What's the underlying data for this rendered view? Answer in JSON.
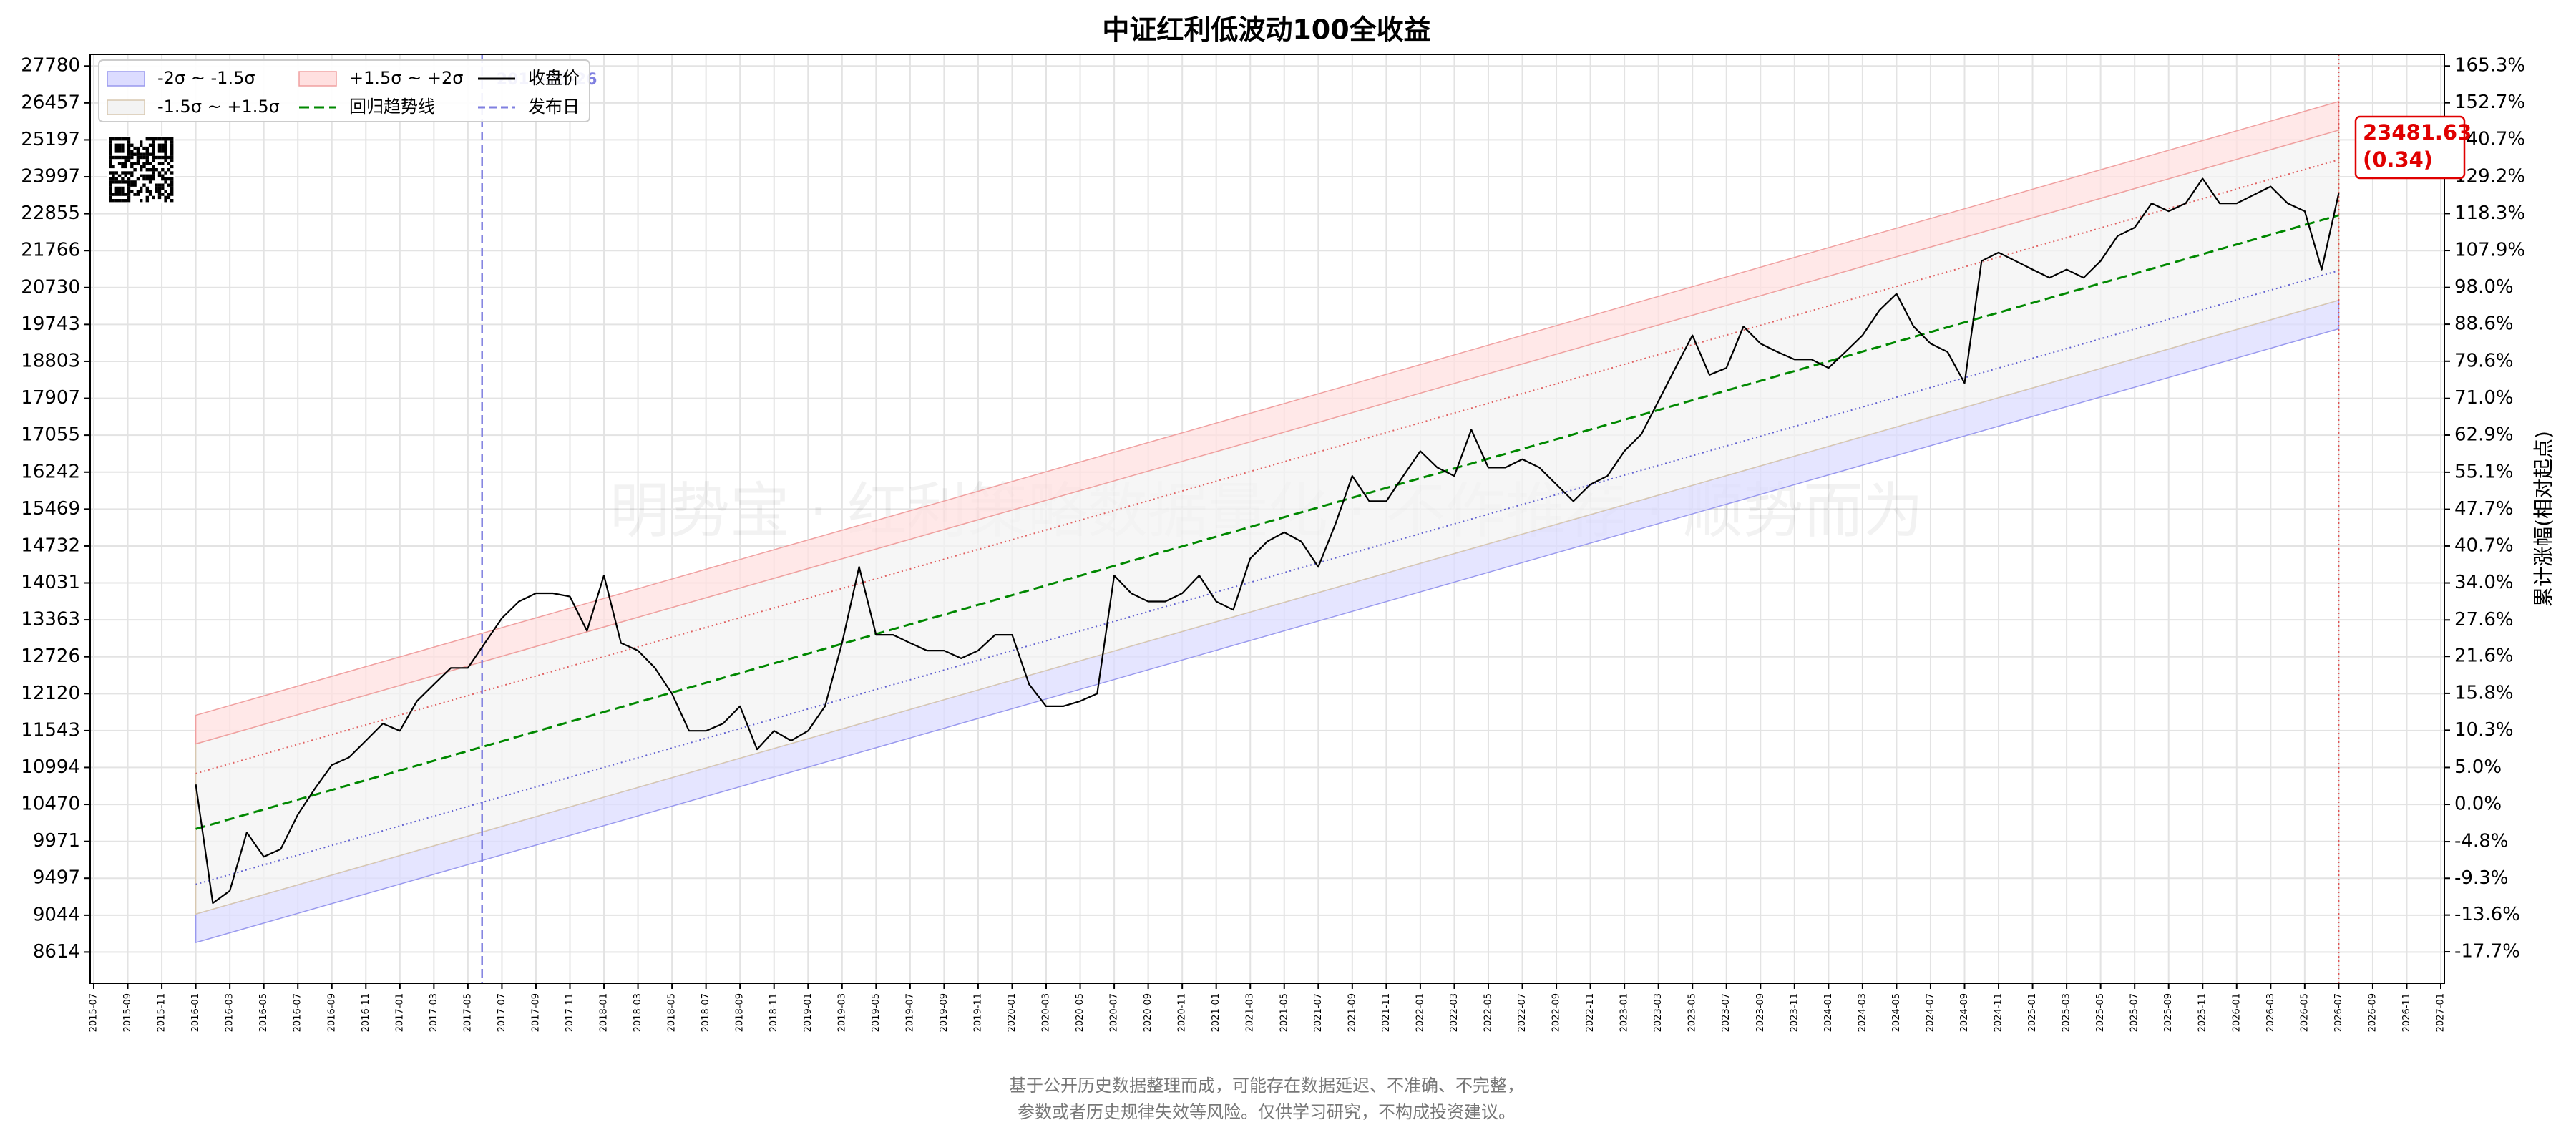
{
  "chart_data": {
    "type": "line",
    "title": "中证红利低波动100全收益",
    "yscale": "log",
    "ylim": [
      8266,
      28210
    ],
    "yticks": [
      27780,
      26457,
      25197,
      23997,
      22855,
      21766,
      20730,
      19743,
      18803,
      17907,
      17055,
      16242,
      15469,
      14732,
      14031,
      13363,
      12726,
      12120,
      11543,
      10994,
      10470,
      9971,
      9497,
      9044,
      8614
    ],
    "y2label": "累计涨幅(相对起点)",
    "y2lim": [
      -21.05,
      169.4
    ],
    "y2ticks": [
      {
        "value": 165.3,
        "label": "165.3%"
      },
      {
        "value": 152.7,
        "label": "152.7%"
      },
      {
        "value": 140.7,
        "label": "140.7%"
      },
      {
        "value": 129.2,
        "label": "129.2%"
      },
      {
        "value": 118.3,
        "label": "118.3%"
      },
      {
        "value": 107.9,
        "label": "107.9%"
      },
      {
        "value": 98.0,
        "label": "98.0%"
      },
      {
        "value": 88.6,
        "label": "88.6%"
      },
      {
        "value": 79.6,
        "label": "79.6%"
      },
      {
        "value": 71.0,
        "label": "71.0%"
      },
      {
        "value": 62.9,
        "label": "62.9%"
      },
      {
        "value": 55.1,
        "label": "55.1%"
      },
      {
        "value": 47.7,
        "label": "47.7%"
      },
      {
        "value": 40.7,
        "label": "40.7%"
      },
      {
        "value": 34.0,
        "label": "34.0%"
      },
      {
        "value": 27.6,
        "label": "27.6%"
      },
      {
        "value": 21.6,
        "label": "21.6%"
      },
      {
        "value": 15.8,
        "label": "15.8%"
      },
      {
        "value": 10.3,
        "label": "10.3%"
      },
      {
        "value": 5.0,
        "label": "5.0%"
      },
      {
        "value": 0.0,
        "label": "0.0%"
      },
      {
        "value": -4.8,
        "label": "-4.8%"
      },
      {
        "value": -9.3,
        "label": "-9.3%"
      },
      {
        "value": -13.6,
        "label": "-13.6%"
      },
      {
        "value": -17.7,
        "label": "-17.7%"
      }
    ],
    "xlim": [
      "2015-07",
      "2027-01"
    ],
    "xticks": [
      "2015-07",
      "2015-09",
      "2015-11",
      "2016-01",
      "2016-03",
      "2016-05",
      "2016-07",
      "2016-09",
      "2016-11",
      "2017-01",
      "2017-03",
      "2017-05",
      "2017-07",
      "2017-09",
      "2017-11",
      "2018-01",
      "2018-03",
      "2018-05",
      "2018-07",
      "2018-09",
      "2018-11",
      "2019-01",
      "2019-03",
      "2019-05",
      "2019-07",
      "2019-09",
      "2019-11",
      "2020-01",
      "2020-03",
      "2020-05",
      "2020-07",
      "2020-09",
      "2020-11",
      "2021-01",
      "2021-03",
      "2021-05",
      "2021-07",
      "2021-09",
      "2021-11",
      "2022-01",
      "2022-03",
      "2022-05",
      "2022-07",
      "2022-09",
      "2022-11",
      "2023-01",
      "2023-03",
      "2023-05",
      "2023-07",
      "2023-09",
      "2023-11",
      "2024-01",
      "2024-03",
      "2024-05",
      "2024-07",
      "2024-09",
      "2024-11",
      "2025-01",
      "2025-03",
      "2025-05",
      "2025-07",
      "2025-09",
      "2025-11",
      "2026-01",
      "2026-03",
      "2026-05",
      "2026-07",
      "2026-09",
      "2026-11",
      "2027-01"
    ],
    "grid": true,
    "legend": "upper left",
    "band_x": [
      "2016-01",
      "2026-07"
    ],
    "bands": [
      {
        "name": "-2σ ~ -1.5σ",
        "color": "#dcdcff",
        "edge": "#9999ee",
        "lower": [
          8723,
          19630
        ],
        "upper": [
          9058,
          20384
        ]
      },
      {
        "name": "-1.5σ ~ +1.5σ",
        "color": "#f3f3f3",
        "edge": "#d8c8b0",
        "lower": [
          9058,
          20384
        ],
        "upper": [
          11342,
          25524
        ]
      },
      {
        "name": "+1.5σ ~ +2σ",
        "color": "#ffe0e0",
        "edge": "#f0a0a0",
        "lower": [
          11342,
          25524
        ],
        "upper": [
          11778,
          26505
        ]
      }
    ],
    "sigma_lines": [
      {
        "color": "#e06060",
        "values": [
          10906,
          24544
        ]
      },
      {
        "color": "#6060d0",
        "values": [
          9420,
          21199
        ]
      }
    ],
    "series": [
      {
        "name": "收盘价",
        "color": "#000000",
        "style": "solid",
        "x": [
          "2016-01",
          "2016-02",
          "2016-03",
          "2016-04",
          "2016-05",
          "2016-06",
          "2016-07",
          "2016-08",
          "2016-09",
          "2016-10",
          "2016-11",
          "2016-12",
          "2017-01",
          "2017-02",
          "2017-03",
          "2017-04",
          "2017-05",
          "2017-06",
          "2017-07",
          "2017-08",
          "2017-09",
          "2017-10",
          "2017-11",
          "2017-12",
          "2018-01",
          "2018-02",
          "2018-03",
          "2018-04",
          "2018-05",
          "2018-06",
          "2018-07",
          "2018-08",
          "2018-09",
          "2018-10",
          "2018-11",
          "2018-12",
          "2019-01",
          "2019-02",
          "2019-03",
          "2019-04",
          "2019-05",
          "2019-06",
          "2019-07",
          "2019-08",
          "2019-09",
          "2019-10",
          "2019-11",
          "2019-12",
          "2020-01",
          "2020-02",
          "2020-03",
          "2020-04",
          "2020-05",
          "2020-06",
          "2020-07",
          "2020-08",
          "2020-09",
          "2020-10",
          "2020-11",
          "2020-12",
          "2021-01",
          "2021-02",
          "2021-03",
          "2021-04",
          "2021-05",
          "2021-06",
          "2021-07",
          "2021-08",
          "2021-09",
          "2021-10",
          "2021-11",
          "2021-12",
          "2022-01",
          "2022-02",
          "2022-03",
          "2022-04",
          "2022-05",
          "2022-06",
          "2022-07",
          "2022-08",
          "2022-09",
          "2022-10",
          "2022-11",
          "2022-12",
          "2023-01",
          "2023-02",
          "2023-03",
          "2023-04",
          "2023-05",
          "2023-06",
          "2023-07",
          "2023-08",
          "2023-09",
          "2023-10",
          "2023-11",
          "2023-12",
          "2024-01",
          "2024-02",
          "2024-03",
          "2024-04",
          "2024-05",
          "2024-06",
          "2024-07",
          "2024-08",
          "2024-09",
          "2024-10",
          "2024-11",
          "2024-12",
          "2025-01",
          "2025-02",
          "2025-03",
          "2025-04",
          "2025-05",
          "2025-06",
          "2025-07",
          "2025-08",
          "2025-09",
          "2025-10",
          "2025-11",
          "2025-12",
          "2026-01",
          "2026-02",
          "2026-03",
          "2026-04",
          "2026-05",
          "2026-06",
          "2026-07"
        ],
        "values": [
          10750,
          9190,
          9340,
          10090,
          9770,
          9870,
          10330,
          10690,
          11030,
          11140,
          11390,
          11650,
          11540,
          12000,
          12270,
          12540,
          12540,
          12960,
          13390,
          13690,
          13840,
          13840,
          13780,
          13170,
          14170,
          12960,
          12830,
          12540,
          12120,
          11540,
          11540,
          11650,
          11920,
          11260,
          11540,
          11390,
          11540,
          11920,
          12960,
          14330,
          13100,
          13100,
          12960,
          12830,
          12830,
          12700,
          12830,
          13100,
          13100,
          12270,
          11920,
          11920,
          12000,
          12120,
          14170,
          13840,
          13690,
          13690,
          13840,
          14170,
          13690,
          13540,
          14490,
          14820,
          15000,
          14820,
          14330,
          15160,
          16160,
          15630,
          15630,
          16160,
          16700,
          16340,
          16160,
          17180,
          16340,
          16340,
          16520,
          16340,
          15980,
          15630,
          15980,
          16160,
          16700,
          17080,
          17840,
          18640,
          19460,
          18470,
          18640,
          19690,
          19250,
          19040,
          18850,
          18850,
          18640,
          19040,
          19460,
          20120,
          20560,
          19690,
          19250,
          19040,
          18270,
          21470,
          21710,
          21470,
          21230,
          21000,
          21230,
          21000,
          21470,
          22190,
          22440,
          23170,
          22930,
          23170,
          23940,
          23170,
          23170,
          23430,
          23690,
          23170,
          22930,
          21230,
          23481.63
        ]
      },
      {
        "name": "回归趋势线",
        "color": "#008800",
        "style": "dashed",
        "x": [
          "2016-01",
          "2026-07"
        ],
        "values": [
          10136,
          22810
        ]
      }
    ],
    "publish_name": "发布日",
    "publish_date": "2017-05-26",
    "publish_color": "#8080e0",
    "annotation": {
      "value": 0.34,
      "label": "(0.34)"
    },
    "watermark": "明势宝 · 红利策略数据量化 · 不作推荐 · 顺势而为",
    "footnote": [
      "基于公开历史数据整理而成，可能存在数据延迟、不准确、不完整，",
      "参数或者历史规律失效等风险。仅供学习研究，不构成投资建议。"
    ]
  }
}
